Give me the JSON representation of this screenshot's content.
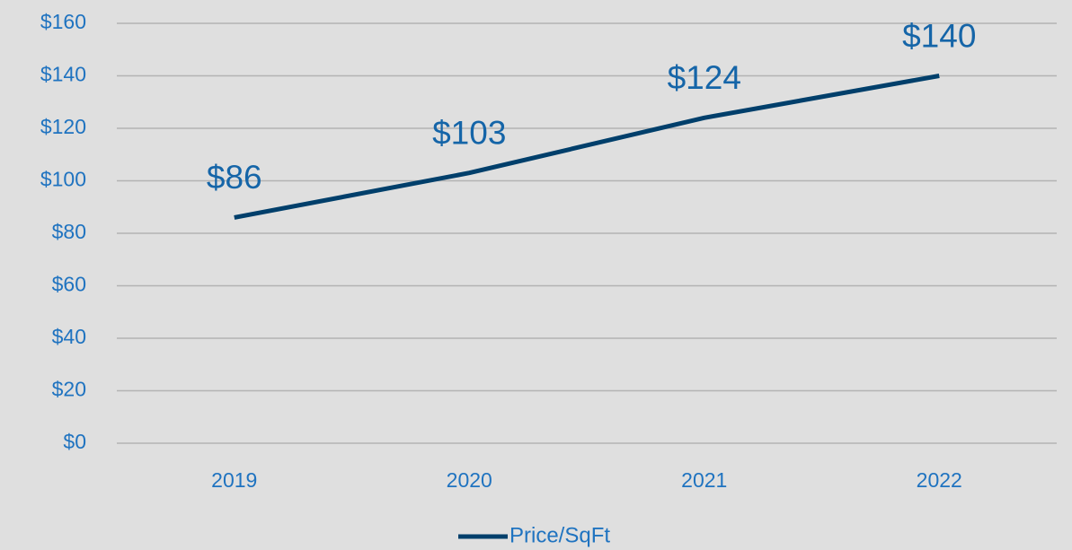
{
  "chart_data": {
    "type": "line",
    "categories": [
      "2019",
      "2020",
      "2021",
      "2022"
    ],
    "series": [
      {
        "name": "Price/SqFt",
        "color": "#003f6b",
        "values": [
          86,
          103,
          124,
          140
        ],
        "value_labels": [
          "$86",
          "$103",
          "$124",
          "$140"
        ]
      }
    ],
    "ylim": [
      0,
      160
    ],
    "yticks": [
      {
        "value": 0,
        "label": "$0"
      },
      {
        "value": 20,
        "label": "$20"
      },
      {
        "value": 40,
        "label": "$40"
      },
      {
        "value": 60,
        "label": "$60"
      },
      {
        "value": 80,
        "label": "$80"
      },
      {
        "value": 100,
        "label": "$100"
      },
      {
        "value": 120,
        "label": "$120"
      },
      {
        "value": 140,
        "label": "$140"
      },
      {
        "value": 160,
        "label": "$160"
      }
    ],
    "grid": true,
    "legend": "bottom"
  }
}
